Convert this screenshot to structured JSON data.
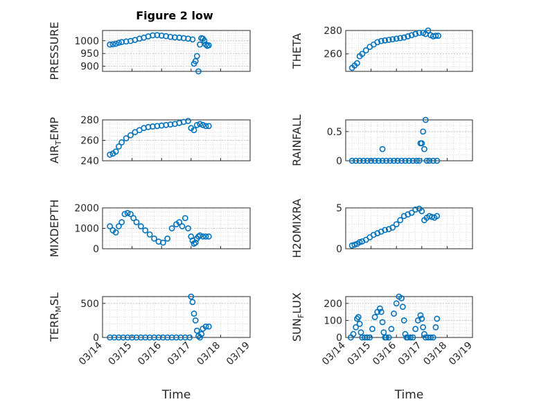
{
  "figure_title": "Figure 2 low",
  "marker_color": "#0072BD",
  "chart_data": [
    {
      "type": "scatter",
      "ylabel": "PRESSURE",
      "xlabel": "",
      "xlim": [
        0,
        5
      ],
      "ylim": [
        880,
        1040
      ],
      "yticks": [
        900,
        950,
        1000
      ],
      "xticklabels": [],
      "grid": true,
      "minor_grid": true,
      "x": [
        0.25,
        0.35,
        0.45,
        0.55,
        0.65,
        0.8,
        0.95,
        1.1,
        1.25,
        1.4,
        1.55,
        1.7,
        1.85,
        2.0,
        2.15,
        2.3,
        2.45,
        2.6,
        2.75,
        2.9,
        3.05,
        3.1,
        3.15,
        3.2,
        3.25,
        3.3,
        3.35,
        3.4,
        3.45,
        3.5,
        3.55,
        3.6
      ],
      "y": [
        985,
        986,
        988,
        992,
        995,
        997,
        999,
        1003,
        1008,
        1012,
        1017,
        1021,
        1022,
        1020,
        1018,
        1015,
        1013,
        1012,
        1010,
        1008,
        1005,
        910,
        920,
        940,
        880,
        985,
        1010,
        1008,
        1000,
        985,
        980,
        982
      ]
    },
    {
      "type": "scatter",
      "ylabel": "THETA",
      "xlabel": "",
      "xlim": [
        0,
        5
      ],
      "ylim": [
        245,
        280
      ],
      "yticks": [
        260,
        280
      ],
      "xticklabels": [],
      "grid": true,
      "minor_grid": true,
      "x": [
        0.25,
        0.35,
        0.45,
        0.55,
        0.65,
        0.8,
        0.95,
        1.1,
        1.25,
        1.4,
        1.55,
        1.7,
        1.85,
        2.0,
        2.15,
        2.3,
        2.45,
        2.6,
        2.75,
        2.9,
        3.05,
        3.15,
        3.25,
        3.35,
        3.45,
        3.55,
        3.65
      ],
      "y": [
        248,
        250,
        252,
        258,
        260,
        263,
        266,
        268,
        270,
        271,
        271.5,
        272,
        272.5,
        273,
        273.5,
        274,
        275,
        276,
        277,
        278,
        278,
        277,
        280,
        276,
        275,
        275.5,
        275.5
      ]
    },
    {
      "type": "scatter",
      "ylabel": "AIR_TEMP",
      "xlabel": "",
      "xlim": [
        0,
        5
      ],
      "ylim": [
        240,
        280
      ],
      "yticks": [
        240,
        260,
        280
      ],
      "xticklabels": [],
      "grid": true,
      "minor_grid": true,
      "x": [
        0.25,
        0.35,
        0.45,
        0.55,
        0.65,
        0.8,
        0.95,
        1.1,
        1.25,
        1.4,
        1.55,
        1.7,
        1.85,
        2.0,
        2.15,
        2.3,
        2.45,
        2.6,
        2.75,
        2.9,
        3.0,
        3.1,
        3.2,
        3.3,
        3.4,
        3.5,
        3.6
      ],
      "y": [
        246,
        247,
        249,
        254,
        258,
        262,
        265,
        268,
        270,
        272,
        273,
        273.5,
        274,
        274.5,
        275,
        275.5,
        276,
        277,
        278,
        279,
        272,
        270,
        275,
        276,
        275,
        274,
        274
      ]
    },
    {
      "type": "scatter",
      "ylabel": "RAINFALL",
      "xlabel": "",
      "xlim": [
        0,
        5
      ],
      "ylim": [
        0,
        0.7
      ],
      "yticks": [
        0,
        0.5
      ],
      "xticklabels": [],
      "grid": true,
      "minor_grid": true,
      "x": [
        0.25,
        0.4,
        0.55,
        0.7,
        0.85,
        1.0,
        1.15,
        1.3,
        1.45,
        1.6,
        1.75,
        1.9,
        2.05,
        2.2,
        2.35,
        2.5,
        2.65,
        2.8,
        2.9,
        2.95,
        3.0,
        3.05,
        3.1,
        3.15,
        3.2,
        3.3,
        3.45,
        3.6,
        1.45
      ],
      "y": [
        0,
        0,
        0,
        0,
        0,
        0,
        0,
        0,
        0,
        0,
        0,
        0,
        0,
        0,
        0,
        0,
        0,
        0,
        0,
        0.3,
        0.3,
        0.5,
        0.2,
        0.7,
        0,
        0,
        0,
        0,
        0.2
      ]
    },
    {
      "type": "scatter",
      "ylabel": "MIXDEPTH",
      "xlabel": "",
      "xlim": [
        0,
        5
      ],
      "ylim": [
        0,
        2000
      ],
      "yticks": [
        0,
        1000,
        2000
      ],
      "xticklabels": [],
      "grid": true,
      "minor_grid": true,
      "x": [
        0.25,
        0.35,
        0.45,
        0.55,
        0.65,
        0.75,
        0.85,
        0.95,
        1.05,
        1.15,
        1.3,
        1.45,
        1.6,
        1.75,
        1.9,
        2.05,
        2.2,
        2.35,
        2.5,
        2.6,
        2.7,
        2.8,
        2.9,
        3.0,
        3.05,
        3.1,
        3.15,
        3.2,
        3.25,
        3.3,
        3.4,
        3.5,
        3.6
      ],
      "y": [
        1100,
        900,
        800,
        1100,
        1300,
        1700,
        1750,
        1700,
        1500,
        1300,
        1100,
        900,
        700,
        500,
        350,
        300,
        500,
        1000,
        1200,
        1300,
        1100,
        1500,
        1000,
        600,
        400,
        250,
        300,
        500,
        600,
        650,
        600,
        600,
        600
      ]
    },
    {
      "type": "scatter",
      "ylabel": "H2OMIXRA",
      "xlabel": "",
      "xlim": [
        0,
        5
      ],
      "ylim": [
        0,
        5
      ],
      "yticks": [
        0,
        5
      ],
      "xticklabels": [],
      "grid": true,
      "minor_grid": true,
      "x": [
        0.25,
        0.35,
        0.45,
        0.55,
        0.65,
        0.8,
        0.95,
        1.1,
        1.25,
        1.4,
        1.55,
        1.7,
        1.85,
        2.0,
        2.15,
        2.3,
        2.45,
        2.6,
        2.75,
        2.9,
        3.0,
        3.1,
        3.2,
        3.3,
        3.4,
        3.5,
        3.6
      ],
      "y": [
        0.4,
        0.5,
        0.6,
        0.8,
        0.9,
        1.1,
        1.4,
        1.7,
        1.9,
        2.1,
        2.3,
        2.4,
        2.6,
        3.0,
        3.5,
        4.0,
        4.2,
        4.4,
        4.8,
        4.9,
        4.6,
        3.5,
        3.8,
        4.0,
        3.9,
        3.8,
        4.0
      ]
    },
    {
      "type": "scatter",
      "ylabel": "TERR_MSL",
      "xlabel": "Time",
      "xlim": [
        0,
        5
      ],
      "ylim": [
        0,
        600
      ],
      "yticks": [
        0,
        500
      ],
      "xticks": [
        0,
        1,
        2,
        3,
        4,
        5
      ],
      "xticklabels": [
        "03/14",
        "03/15",
        "03/16",
        "03/17",
        "03/18",
        "03/19"
      ],
      "grid": true,
      "minor_grid": true,
      "x": [
        0.25,
        0.4,
        0.55,
        0.7,
        0.85,
        1.0,
        1.15,
        1.3,
        1.45,
        1.6,
        1.75,
        1.9,
        2.05,
        2.2,
        2.35,
        2.5,
        2.65,
        2.8,
        2.95,
        3.0,
        3.05,
        3.1,
        3.15,
        3.2,
        3.25,
        3.3,
        3.35,
        3.4,
        3.5,
        3.6
      ],
      "y": [
        0,
        0,
        0,
        0,
        0,
        0,
        0,
        0,
        0,
        0,
        0,
        0,
        0,
        0,
        0,
        0,
        0,
        0,
        0,
        600,
        520,
        350,
        250,
        100,
        20,
        0,
        50,
        130,
        160,
        160
      ]
    },
    {
      "type": "scatter",
      "ylabel": "SUN_FLUX",
      "xlabel": "Time",
      "xlim": [
        0,
        5
      ],
      "ylim": [
        0,
        240
      ],
      "yticks": [
        0,
        100,
        200
      ],
      "xticks": [
        0,
        1,
        2,
        3,
        4,
        5
      ],
      "xticklabels": [
        "03/14",
        "03/15",
        "03/16",
        "03/17",
        "03/18",
        "03/19"
      ],
      "grid": true,
      "minor_grid": true,
      "x": [
        0.2,
        0.3,
        0.4,
        0.45,
        0.5,
        0.55,
        0.6,
        0.65,
        0.75,
        0.85,
        0.95,
        1.05,
        1.15,
        1.25,
        1.35,
        1.4,
        1.45,
        1.5,
        1.55,
        1.6,
        1.7,
        1.8,
        1.9,
        2.0,
        2.1,
        2.2,
        2.25,
        2.3,
        2.35,
        2.4,
        2.45,
        2.55,
        2.65,
        2.75,
        2.85,
        2.95,
        3.0,
        3.05,
        3.1,
        3.15,
        3.25,
        3.35,
        3.45,
        3.55,
        3.6
      ],
      "y": [
        0,
        20,
        60,
        110,
        120,
        80,
        30,
        0,
        0,
        0,
        0,
        50,
        120,
        150,
        170,
        150,
        90,
        30,
        0,
        0,
        0,
        50,
        140,
        200,
        240,
        230,
        180,
        100,
        20,
        0,
        0,
        0,
        0,
        50,
        100,
        130,
        110,
        60,
        20,
        0,
        0,
        0,
        0,
        60,
        110
      ]
    }
  ]
}
